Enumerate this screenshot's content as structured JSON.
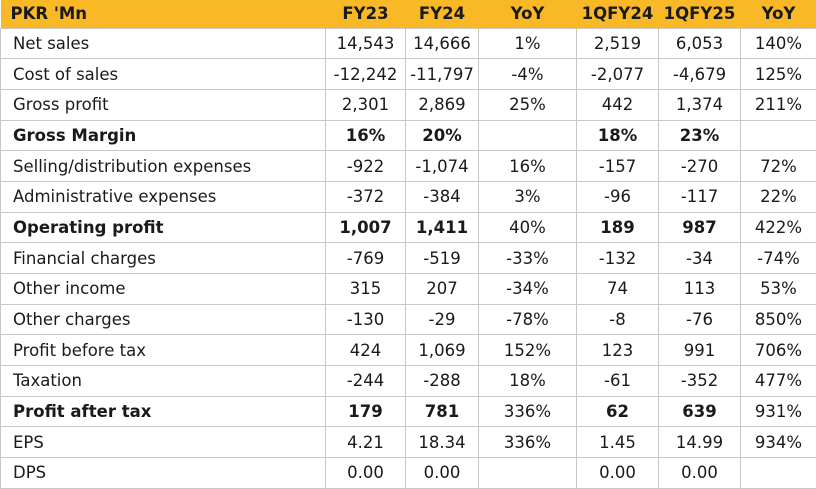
{
  "header": [
    "PKR 'Mn",
    "FY23",
    "FY24",
    "YoY",
    "1QFY24",
    "1QFY25",
    "YoY"
  ],
  "rows": [
    {
      "label": "Net sales",
      "bold": false,
      "values": [
        "14,543",
        "14,666",
        "1%",
        "2,519",
        "6,053",
        "140%"
      ]
    },
    {
      "label": "Cost of sales",
      "bold": false,
      "values": [
        "-12,242",
        "-11,797",
        "-4%",
        "-2,077",
        "-4,679",
        "125%"
      ]
    },
    {
      "label": "Gross profit",
      "bold": false,
      "values": [
        "2,301",
        "2,869",
        "25%",
        "442",
        "1,374",
        "211%"
      ]
    },
    {
      "label": "Gross Margin",
      "bold": true,
      "values": [
        "16%",
        "20%",
        "",
        "18%",
        "23%",
        ""
      ]
    },
    {
      "label": "Selling/distribution expenses",
      "bold": false,
      "values": [
        "-922",
        "-1,074",
        "16%",
        "-157",
        "-270",
        "72%"
      ]
    },
    {
      "label": "Administrative expenses",
      "bold": false,
      "values": [
        "-372",
        "-384",
        "3%",
        "-96",
        "-117",
        "22%"
      ]
    },
    {
      "label": "Operating profit",
      "bold": true,
      "values": [
        "1,007",
        "1,411",
        "40%",
        "189",
        "987",
        "422%"
      ]
    },
    {
      "label": "Financial charges",
      "bold": false,
      "values": [
        "-769",
        "-519",
        "-33%",
        "-132",
        "-34",
        "-74%"
      ]
    },
    {
      "label": "Other income",
      "bold": false,
      "values": [
        "315",
        "207",
        "-34%",
        "74",
        "113",
        "53%"
      ]
    },
    {
      "label": "Other charges",
      "bold": false,
      "values": [
        "-130",
        "-29",
        "-78%",
        "-8",
        "-76",
        "850%"
      ]
    },
    {
      "label": "Profit before tax",
      "bold": false,
      "values": [
        "424",
        "1,069",
        "152%",
        "123",
        "991",
        "706%"
      ]
    },
    {
      "label": "Taxation",
      "bold": false,
      "values": [
        "-244",
        "-288",
        "18%",
        "-61",
        "-352",
        "477%"
      ]
    },
    {
      "label": "Profit after tax",
      "bold": true,
      "values": [
        "179",
        "781",
        "336%",
        "62",
        "639",
        "931%"
      ]
    },
    {
      "label": "EPS",
      "bold": false,
      "values": [
        "4.21",
        "18.34",
        "336%",
        "1.45",
        "14.99",
        "934%"
      ]
    },
    {
      "label": "DPS",
      "bold": false,
      "values": [
        "0.00",
        "0.00",
        "",
        "0.00",
        "0.00",
        ""
      ]
    }
  ]
}
